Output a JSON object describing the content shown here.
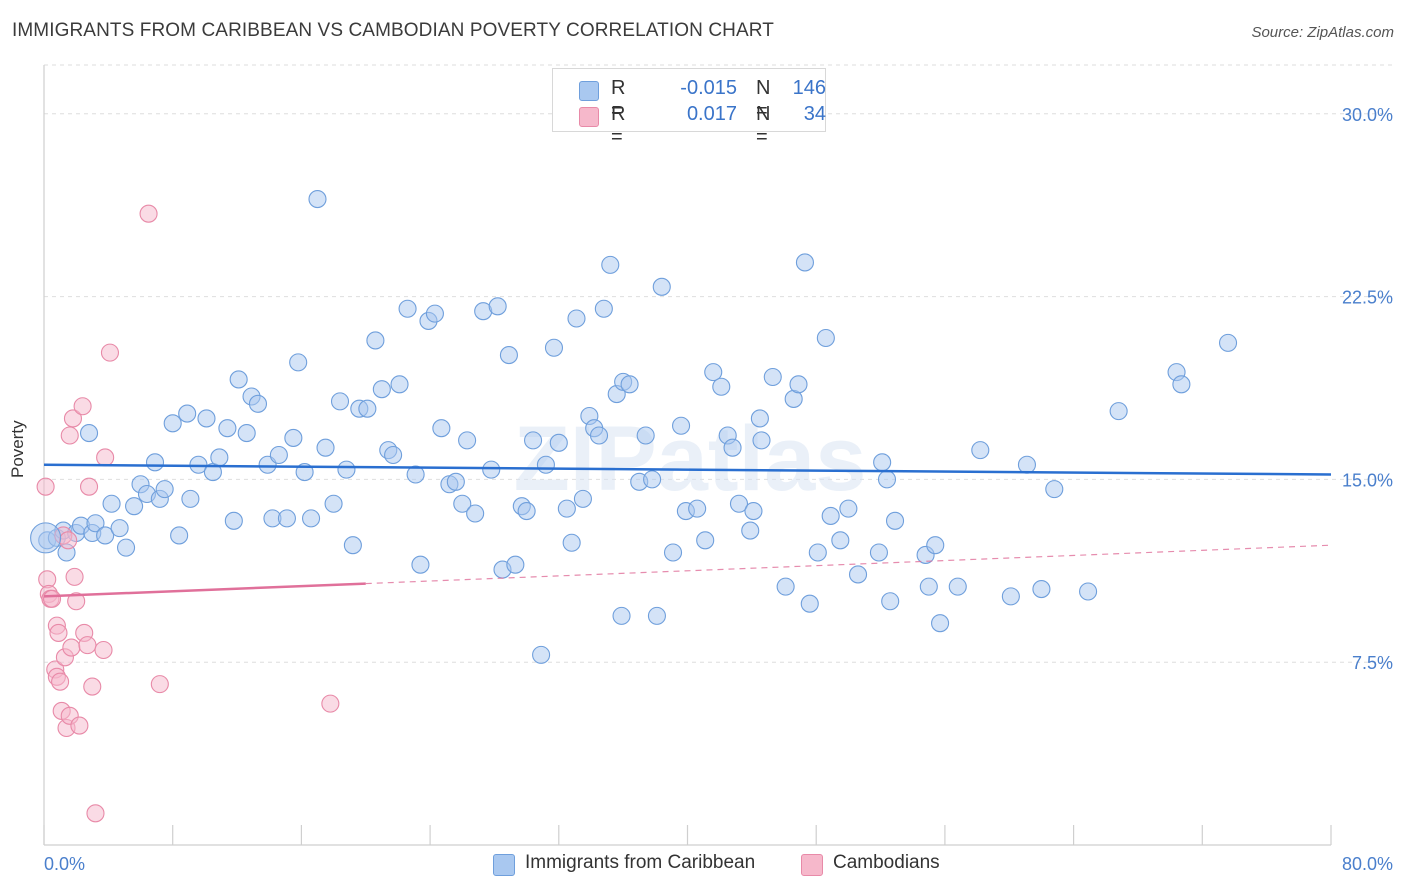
{
  "title": "IMMIGRANTS FROM CARIBBEAN VS CAMBODIAN POVERTY CORRELATION CHART",
  "source": "Source: ZipAtlas.com",
  "watermark": "ZIPatlas",
  "legend_stats": [
    {
      "r_label": "R =",
      "r_value": "-0.015",
      "n_label": "N =",
      "n_value": "146",
      "color": "#a9c8f0"
    },
    {
      "r_label": "R =",
      "r_value": "0.017",
      "n_label": "N =",
      "n_value": "34",
      "color": "#f6b8cb"
    }
  ],
  "colors": {
    "blue_fill": "#a9c8f0",
    "blue_stroke": "#6f9fdc",
    "blue_line": "#2a6fd0",
    "pink_fill": "#f6b8cb",
    "pink_stroke": "#e88aa8",
    "pink_line": "#e0709a",
    "axis_label": "#4a7fcc",
    "grid": "#dedede"
  },
  "chart_data": {
    "type": "scatter",
    "title": "IMMIGRANTS FROM CARIBBEAN VS CAMBODIAN POVERTY CORRELATION CHART",
    "xlabel": "",
    "ylabel": "Poverty",
    "xlim": [
      0,
      80
    ],
    "ylim": [
      0,
      32
    ],
    "x_tick_labels": [
      "0.0%",
      "80.0%"
    ],
    "y_ticks": [
      7.5,
      15.0,
      22.5,
      30.0
    ],
    "y_tick_labels": [
      "7.5%",
      "15.0%",
      "22.5%",
      "30.0%"
    ],
    "grid": true,
    "legend_position": "bottom",
    "series": [
      {
        "name": "Immigrants from Caribbean",
        "trend": {
          "x": [
            0,
            80
          ],
          "y": [
            15.6,
            15.2
          ],
          "solid_until": 80
        },
        "points": [
          [
            0.2,
            12.5
          ],
          [
            0.8,
            12.6
          ],
          [
            1.2,
            12.9
          ],
          [
            1.4,
            12.0
          ],
          [
            2.0,
            12.8
          ],
          [
            2.3,
            13.1
          ],
          [
            3.0,
            12.8
          ],
          [
            3.2,
            13.2
          ],
          [
            2.8,
            16.9
          ],
          [
            3.8,
            12.7
          ],
          [
            4.2,
            14.0
          ],
          [
            4.7,
            13.0
          ],
          [
            5.1,
            12.2
          ],
          [
            5.6,
            13.9
          ],
          [
            6.0,
            14.8
          ],
          [
            6.4,
            14.4
          ],
          [
            6.9,
            15.7
          ],
          [
            7.2,
            14.2
          ],
          [
            7.5,
            14.6
          ],
          [
            8.0,
            17.3
          ],
          [
            8.4,
            12.7
          ],
          [
            8.9,
            17.7
          ],
          [
            9.1,
            14.2
          ],
          [
            9.6,
            15.6
          ],
          [
            10.1,
            17.5
          ],
          [
            10.5,
            15.3
          ],
          [
            10.9,
            15.9
          ],
          [
            11.4,
            17.1
          ],
          [
            11.8,
            13.3
          ],
          [
            12.1,
            19.1
          ],
          [
            12.6,
            16.9
          ],
          [
            12.9,
            18.4
          ],
          [
            13.3,
            18.1
          ],
          [
            13.9,
            15.6
          ],
          [
            14.2,
            13.4
          ],
          [
            14.6,
            16.0
          ],
          [
            15.1,
            13.4
          ],
          [
            15.5,
            16.7
          ],
          [
            15.8,
            19.8
          ],
          [
            16.2,
            15.3
          ],
          [
            16.6,
            13.4
          ],
          [
            17.0,
            26.5
          ],
          [
            17.5,
            16.3
          ],
          [
            18.0,
            14.0
          ],
          [
            18.4,
            18.2
          ],
          [
            18.8,
            15.4
          ],
          [
            19.2,
            12.3
          ],
          [
            19.6,
            17.9
          ],
          [
            20.1,
            17.9
          ],
          [
            20.6,
            20.7
          ],
          [
            21.0,
            18.7
          ],
          [
            21.4,
            16.2
          ],
          [
            21.7,
            16.0
          ],
          [
            22.1,
            18.9
          ],
          [
            22.6,
            22.0
          ],
          [
            23.1,
            15.2
          ],
          [
            23.4,
            11.5
          ],
          [
            23.9,
            21.5
          ],
          [
            24.3,
            21.8
          ],
          [
            24.7,
            17.1
          ],
          [
            25.2,
            14.8
          ],
          [
            25.6,
            14.9
          ],
          [
            26.0,
            14.0
          ],
          [
            26.3,
            16.6
          ],
          [
            26.8,
            13.6
          ],
          [
            27.3,
            21.9
          ],
          [
            27.8,
            15.4
          ],
          [
            28.2,
            22.1
          ],
          [
            28.5,
            11.3
          ],
          [
            28.9,
            20.1
          ],
          [
            29.3,
            11.5
          ],
          [
            29.7,
            13.9
          ],
          [
            30.0,
            13.7
          ],
          [
            30.4,
            16.6
          ],
          [
            30.9,
            7.8
          ],
          [
            31.2,
            15.6
          ],
          [
            31.7,
            20.4
          ],
          [
            32.0,
            16.5
          ],
          [
            32.5,
            13.8
          ],
          [
            32.8,
            12.4
          ],
          [
            33.1,
            21.6
          ],
          [
            33.5,
            14.2
          ],
          [
            33.9,
            17.6
          ],
          [
            34.2,
            17.1
          ],
          [
            34.5,
            16.8
          ],
          [
            34.8,
            22.0
          ],
          [
            35.2,
            23.8
          ],
          [
            35.6,
            18.5
          ],
          [
            36.0,
            19.0
          ],
          [
            36.4,
            18.9
          ],
          [
            35.9,
            9.4
          ],
          [
            37.0,
            14.9
          ],
          [
            37.4,
            16.8
          ],
          [
            37.8,
            15.0
          ],
          [
            38.1,
            9.4
          ],
          [
            38.4,
            22.9
          ],
          [
            39.1,
            12.0
          ],
          [
            39.6,
            17.2
          ],
          [
            39.9,
            13.7
          ],
          [
            40.6,
            13.8
          ],
          [
            41.1,
            12.5
          ],
          [
            41.6,
            19.4
          ],
          [
            42.1,
            18.8
          ],
          [
            42.5,
            16.8
          ],
          [
            42.8,
            16.3
          ],
          [
            43.2,
            14.0
          ],
          [
            43.9,
            12.9
          ],
          [
            44.1,
            13.7
          ],
          [
            44.5,
            17.5
          ],
          [
            44.6,
            16.6
          ],
          [
            45.3,
            19.2
          ],
          [
            46.1,
            10.6
          ],
          [
            46.6,
            18.3
          ],
          [
            46.9,
            18.9
          ],
          [
            47.3,
            23.9
          ],
          [
            47.6,
            9.9
          ],
          [
            48.1,
            12.0
          ],
          [
            48.6,
            20.8
          ],
          [
            48.9,
            13.5
          ],
          [
            49.5,
            12.5
          ],
          [
            50.0,
            13.8
          ],
          [
            50.6,
            11.1
          ],
          [
            51.9,
            12.0
          ],
          [
            52.1,
            15.7
          ],
          [
            52.4,
            15.0
          ],
          [
            52.6,
            10.0
          ],
          [
            52.9,
            13.3
          ],
          [
            54.8,
            11.9
          ],
          [
            55.0,
            10.6
          ],
          [
            55.4,
            12.3
          ],
          [
            55.7,
            9.1
          ],
          [
            56.8,
            10.6
          ],
          [
            58.2,
            16.2
          ],
          [
            60.1,
            10.2
          ],
          [
            61.1,
            15.6
          ],
          [
            62.0,
            10.5
          ],
          [
            62.8,
            14.6
          ],
          [
            64.9,
            10.4
          ],
          [
            66.8,
            17.8
          ],
          [
            70.4,
            19.4
          ],
          [
            70.7,
            18.9
          ],
          [
            73.6,
            20.6
          ]
        ]
      },
      {
        "name": "Cambodians",
        "trend": {
          "x": [
            0,
            80
          ],
          "y": [
            10.2,
            12.3
          ],
          "solid_until": 20
        },
        "points": [
          [
            0.1,
            14.7
          ],
          [
            0.2,
            10.9
          ],
          [
            0.3,
            10.3
          ],
          [
            0.4,
            10.1
          ],
          [
            0.5,
            10.1
          ],
          [
            0.7,
            7.2
          ],
          [
            0.8,
            6.9
          ],
          [
            0.8,
            9.0
          ],
          [
            0.9,
            8.7
          ],
          [
            1.0,
            6.7
          ],
          [
            1.1,
            5.5
          ],
          [
            1.2,
            12.7
          ],
          [
            1.3,
            7.7
          ],
          [
            1.4,
            4.8
          ],
          [
            1.5,
            12.5
          ],
          [
            1.6,
            16.8
          ],
          [
            1.6,
            5.3
          ],
          [
            1.7,
            8.1
          ],
          [
            1.8,
            17.5
          ],
          [
            1.9,
            11.0
          ],
          [
            2.0,
            10.0
          ],
          [
            2.2,
            4.9
          ],
          [
            2.4,
            18.0
          ],
          [
            2.5,
            8.7
          ],
          [
            2.7,
            8.2
          ],
          [
            2.8,
            14.7
          ],
          [
            3.0,
            6.5
          ],
          [
            3.2,
            1.3
          ],
          [
            3.7,
            8.0
          ],
          [
            3.8,
            15.9
          ],
          [
            4.1,
            20.2
          ],
          [
            6.5,
            25.9
          ],
          [
            7.2,
            6.6
          ],
          [
            17.8,
            5.8
          ]
        ]
      }
    ]
  },
  "legend_bottom": [
    {
      "label": "Immigrants from Caribbean",
      "color": "#a9c8f0"
    },
    {
      "label": "Cambodians",
      "color": "#f6b8cb"
    }
  ]
}
